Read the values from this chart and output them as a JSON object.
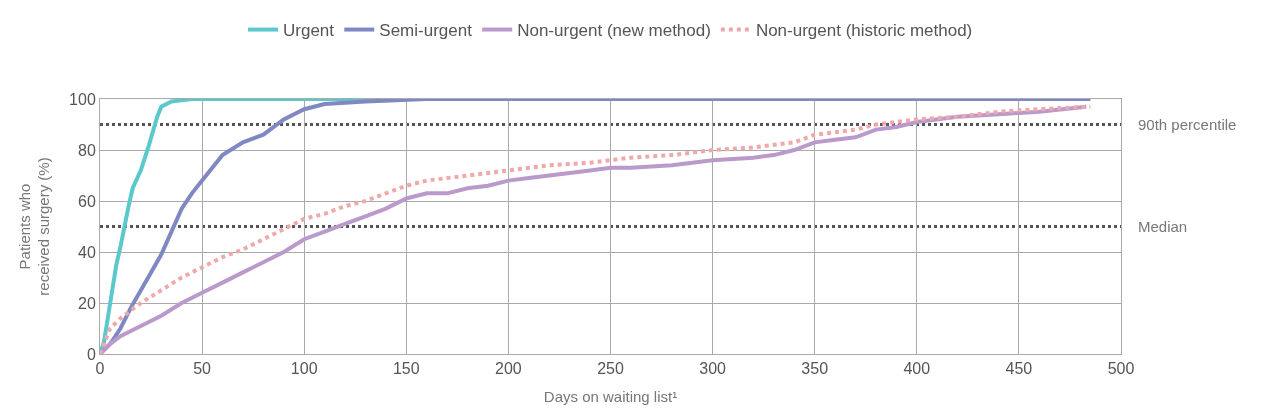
{
  "chart_data": {
    "type": "line",
    "xlabel": "Days on waiting list¹",
    "ylabel": "Patients who received surgery (%)",
    "xlim": [
      0,
      500
    ],
    "xticks": [
      0,
      50,
      100,
      150,
      200,
      250,
      300,
      350,
      400,
      450,
      500
    ],
    "ylim": [
      0,
      100
    ],
    "yticks": [
      0,
      20,
      40,
      60,
      80,
      100
    ],
    "grid": true,
    "legend": "top",
    "ref_lines": [
      {
        "axis": "y",
        "value": 90,
        "label": "90th percentile",
        "color": "#555555",
        "line_style": "dotted"
      },
      {
        "axis": "y",
        "value": 50,
        "label": "Median",
        "color": "#555555",
        "line_style": "dotted"
      }
    ],
    "series": [
      {
        "name": "Urgent",
        "color": "#5bc8cc",
        "line_style": "solid",
        "x": [
          0,
          2,
          4,
          6,
          8,
          10,
          12,
          14,
          16,
          20,
          24,
          28,
          30,
          35,
          45,
          150
        ],
        "values": [
          0,
          5,
          15,
          25,
          35,
          42,
          50,
          58,
          65,
          72,
          82,
          93,
          97,
          99,
          100,
          100
        ]
      },
      {
        "name": "Semi-urgent",
        "color": "#7f88c2",
        "line_style": "solid",
        "x": [
          0,
          5,
          10,
          15,
          20,
          25,
          30,
          35,
          40,
          45,
          50,
          55,
          60,
          70,
          80,
          90,
          100,
          110,
          130,
          160,
          485
        ],
        "values": [
          0,
          4,
          10,
          18,
          25,
          32,
          39,
          48,
          57,
          63,
          68,
          73,
          78,
          83,
          86,
          92,
          96,
          98,
          99,
          100,
          100
        ]
      },
      {
        "name": "Non-urgent (new method)",
        "color": "#b99acb",
        "line_style": "solid",
        "x": [
          0,
          5,
          10,
          20,
          30,
          40,
          50,
          60,
          70,
          80,
          90,
          100,
          110,
          120,
          130,
          140,
          150,
          160,
          170,
          180,
          190,
          200,
          210,
          220,
          230,
          240,
          250,
          260,
          280,
          300,
          320,
          330,
          340,
          350,
          360,
          370,
          380,
          390,
          400,
          420,
          440,
          460,
          483
        ],
        "values": [
          0,
          4,
          7,
          11,
          15,
          20,
          24,
          28,
          32,
          36,
          40,
          45,
          48,
          51,
          54,
          57,
          61,
          63,
          63,
          65,
          66,
          68,
          69,
          70,
          71,
          72,
          73,
          73,
          74,
          76,
          77,
          78,
          80,
          83,
          84,
          85,
          88,
          89,
          91,
          93,
          94,
          95,
          97
        ]
      },
      {
        "name": "Non-urgent (historic method)",
        "color": "#f0a8ab",
        "line_style": "dotted",
        "x": [
          0,
          5,
          10,
          20,
          30,
          40,
          50,
          60,
          70,
          80,
          90,
          100,
          110,
          120,
          130,
          140,
          150,
          160,
          170,
          180,
          200,
          220,
          240,
          260,
          280,
          300,
          320,
          340,
          350,
          360,
          370,
          380,
          400,
          420,
          440,
          460,
          485
        ],
        "values": [
          0,
          10,
          14,
          20,
          25,
          30,
          34,
          38,
          41,
          45,
          49,
          53,
          55,
          58,
          60,
          63,
          66,
          68,
          69,
          70,
          72,
          74,
          75,
          77,
          78,
          80,
          81,
          83,
          86,
          87,
          88,
          90,
          92,
          93,
          95,
          96,
          97
        ]
      }
    ]
  }
}
